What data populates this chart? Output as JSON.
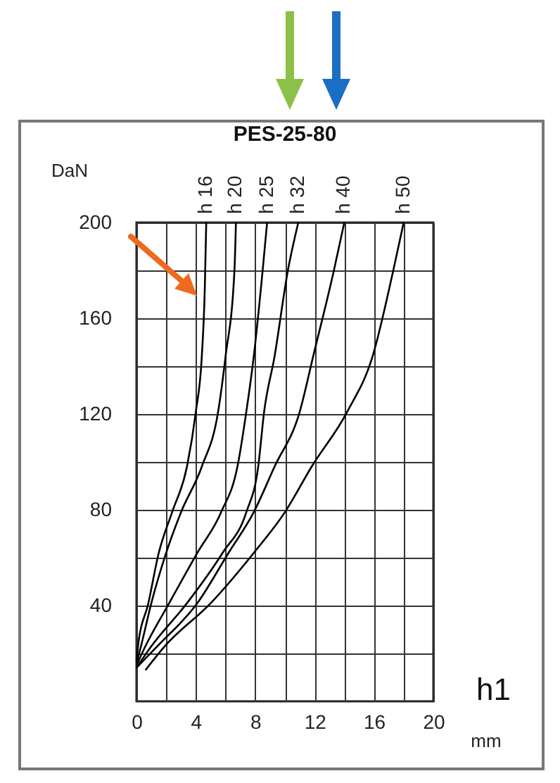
{
  "chart_data": {
    "type": "line",
    "title": "PES-25-80",
    "xlabel": "mm",
    "ylabel": "DaN",
    "annotations": [
      "h1"
    ],
    "xlim": [
      0,
      20
    ],
    "ylim": [
      0,
      200
    ],
    "xticks": [
      0,
      {
        "value": 2,
        "label": null
      },
      4,
      {
        "value": 6,
        "label": null
      },
      8,
      {
        "value": 10,
        "label": null
      },
      12,
      {
        "value": 14,
        "label": null
      },
      16,
      {
        "value": 18,
        "label": null
      },
      20
    ],
    "yticks": [
      {
        "value": 20,
        "label": null
      },
      40,
      {
        "value": 60,
        "label": null
      },
      80,
      {
        "value": 100,
        "label": null
      },
      120,
      {
        "value": 140,
        "label": null
      },
      160,
      {
        "value": 180,
        "label": null
      },
      200
    ],
    "grid": true,
    "legend": false,
    "marker": "none",
    "line_style": "solid",
    "series": [
      {
        "name": "h 16",
        "color": "#000000",
        "x": [
          0,
          0.1,
          0.8,
          1.5,
          2.4,
          3.4,
          4.0,
          4.4,
          4.6,
          4.7
        ],
        "values": [
          17,
          23,
          41,
          62,
          79,
          98,
          121,
          144,
          172,
          200
        ]
      },
      {
        "name": "h 20",
        "color": "#000000",
        "x": [
          0,
          0.3,
          1.0,
          2.0,
          3.0,
          4.4,
          5.5,
          6.0,
          6.6,
          6.7
        ],
        "values": [
          16,
          23,
          41,
          62,
          79,
          98,
          121,
          144,
          180,
          200
        ]
      },
      {
        "name": "h 25",
        "color": "#000000",
        "x": [
          0,
          0.6,
          2.2,
          4.1,
          5.7,
          6.8,
          7.4,
          7.9,
          8.5,
          8.8
        ],
        "values": [
          15,
          23,
          41,
          62,
          79,
          98,
          121,
          144,
          180,
          200
        ]
      },
      {
        "name": "h 32",
        "color": "#000000",
        "x": [
          0,
          1.0,
          3.4,
          5.8,
          7.4,
          8.2,
          8.6,
          9.3,
          10.2,
          10.9
        ],
        "values": [
          14,
          23,
          41,
          62,
          79,
          98,
          121,
          144,
          180,
          200
        ]
      },
      {
        "name": "h 40",
        "color": "#000000",
        "x": [
          0,
          1.4,
          4.1,
          6.2,
          7.9,
          9.3,
          11.0,
          11.9,
          13.3,
          14.0
        ],
        "values": [
          14,
          23,
          41,
          62,
          79,
          98,
          121,
          144,
          180,
          200
        ]
      },
      {
        "name": "h 50",
        "color": "#000000",
        "x": [
          0.6,
          1.9,
          5.0,
          7.9,
          10.0,
          11.8,
          14.2,
          15.9,
          17.3,
          18.0
        ],
        "values": [
          13,
          23,
          41,
          62,
          79,
          98,
          121,
          144,
          180,
          200
        ]
      }
    ]
  }
}
